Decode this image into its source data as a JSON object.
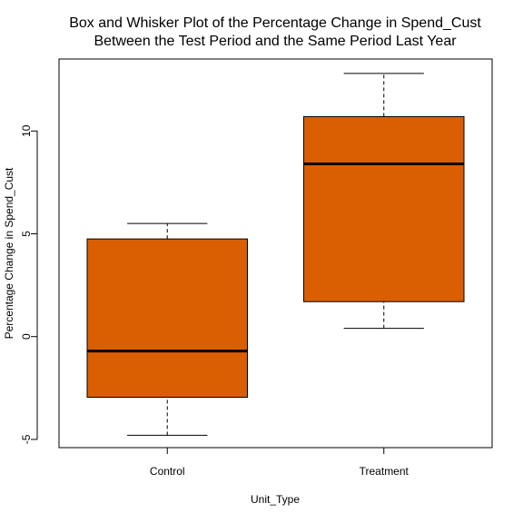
{
  "chart_data": {
    "type": "box",
    "title_lines": [
      "Box and Whisker Plot of the Percentage Change in Spend_Cust",
      "Between the Test Period and the Same Period Last Year"
    ],
    "xlabel": "Unit_Type",
    "ylabel": "Percentage Change in Spend_Cust",
    "categories": [
      "Control",
      "Treatment"
    ],
    "yticks": [
      -5,
      0,
      5,
      10
    ],
    "ylim": [
      -5.4,
      13.5
    ],
    "box_color": "#d95f02",
    "boxes": [
      {
        "category": "Control",
        "whisker_low": -4.8,
        "q1": -2.95,
        "median": -0.7,
        "q3": 4.75,
        "whisker_high": 5.5
      },
      {
        "category": "Treatment",
        "whisker_low": 0.4,
        "q1": 1.7,
        "median": 8.4,
        "q3": 10.7,
        "whisker_high": 12.8
      }
    ]
  }
}
